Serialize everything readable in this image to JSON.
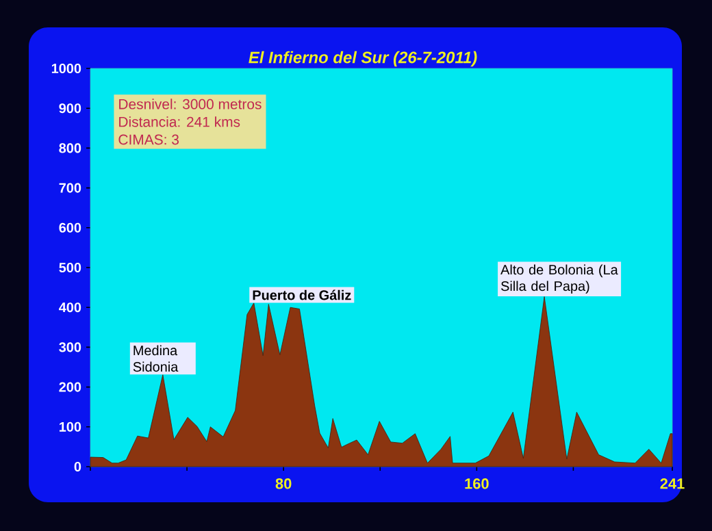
{
  "chart_data": {
    "type": "area",
    "title": "El Infierno del Sur (26-7-2011)",
    "x": [
      0,
      5.3,
      9,
      11.5,
      14.8,
      19.5,
      24,
      30,
      34.6,
      40.3,
      44.2,
      48.2,
      49.7,
      55,
      60,
      64.9,
      67.7,
      71.5,
      73.8,
      78.5,
      82.8,
      86.6,
      92.9,
      95,
      98.5,
      100.4,
      104,
      107.4,
      110.3,
      115,
      119.7,
      124.4,
      129.2,
      134.5,
      139.6,
      145.2,
      149,
      150,
      159.4,
      165,
      175,
      179.3,
      188,
      197.3,
      201.4,
      210.5,
      217.1,
      225.6,
      231.3,
      236.4,
      240.2,
      241
    ],
    "series": [
      {
        "color": "#8b3510",
        "values": [
          24,
          23,
          9,
          9,
          17,
          77,
          72,
          231,
          68,
          124,
          101,
          63,
          100,
          75,
          141,
          382,
          411,
          279,
          408,
          281,
          400,
          396,
          153,
          84,
          47,
          121,
          49,
          59,
          67,
          30,
          114,
          62,
          59,
          83,
          9,
          44,
          76,
          9,
          9,
          27,
          137,
          21,
          427,
          19,
          137,
          30,
          12,
          9,
          44,
          9,
          83,
          83
        ]
      }
    ],
    "xlim": [
      0,
      241
    ],
    "ylim": [
      0,
      1000
    ],
    "xticks": [
      {
        "value": 0,
        "label": null
      },
      {
        "value": 40,
        "label": null
      },
      80,
      {
        "value": 120,
        "label": null
      },
      160,
      {
        "value": 200,
        "label": null
      },
      241
    ],
    "yticks": [
      0,
      100,
      200,
      300,
      400,
      500,
      600,
      700,
      800,
      900,
      1000
    ],
    "marker": "none",
    "annotations": [
      "Desnivel: 3000 metros",
      "Distancia: 241 kms",
      "CIMAS: 3",
      {
        "text": "Medina Sidonia",
        "x": 30,
        "y": 231
      },
      {
        "text": "Puerto de Gáliz",
        "x": 67.7,
        "y": 411
      },
      {
        "text": "Alto de Bolonia (La Silla del Papa)",
        "x": 188,
        "y": 427
      }
    ]
  }
}
